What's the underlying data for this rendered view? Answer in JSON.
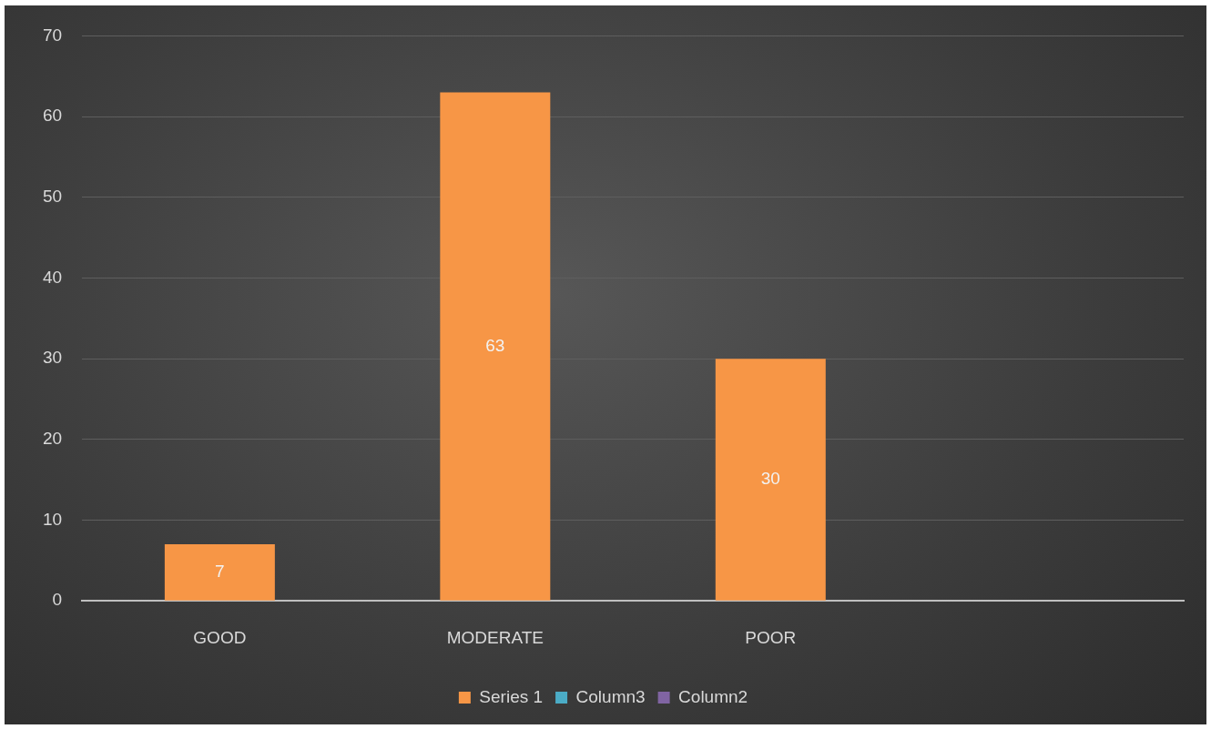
{
  "chart_data": {
    "type": "bar",
    "categories": [
      "GOOD",
      "MODERATE",
      "POOR",
      null
    ],
    "series": [
      {
        "name": "Series 1",
        "color": "#f79646",
        "values": [
          7,
          63,
          30,
          null
        ]
      },
      {
        "name": "Column3",
        "color": "#4bacc6",
        "values": [
          null,
          null,
          null,
          null
        ]
      },
      {
        "name": "Column2",
        "color": "#8064a2",
        "values": [
          null,
          null,
          null,
          null
        ]
      }
    ],
    "ylim": [
      0,
      70
    ],
    "yticks": [
      0,
      10,
      20,
      30,
      40,
      50,
      60,
      70
    ],
    "grid": "y",
    "legend": "bottom",
    "data_labels": true
  }
}
